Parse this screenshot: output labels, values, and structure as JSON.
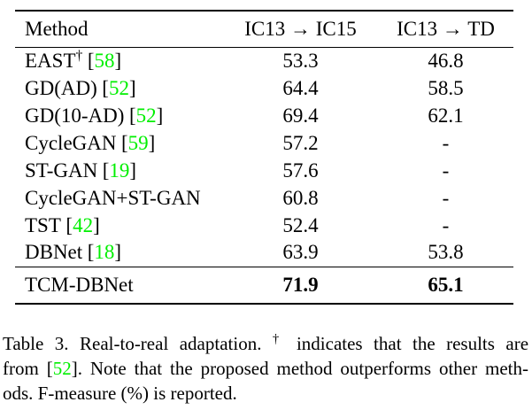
{
  "colors": {
    "citation": "#00ef00",
    "text": "#000000"
  },
  "table": {
    "columns": [
      {
        "label": "Method"
      },
      {
        "label": "IC13 → IC15"
      },
      {
        "label": "IC13 → TD"
      }
    ],
    "rows": [
      {
        "method": "EAST",
        "dagger": "†",
        "cite_l": "[",
        "cite": "58",
        "cite_r": "]",
        "ic15": "53.3",
        "td": "46.8"
      },
      {
        "method": "GD(AD)",
        "cite_l": "[",
        "cite": "52",
        "cite_r": "]",
        "ic15": "64.4",
        "td": "58.5"
      },
      {
        "method": "GD(10-AD)",
        "cite_l": "[",
        "cite": "52",
        "cite_r": "]",
        "ic15": "69.4",
        "td": "62.1"
      },
      {
        "method": "CycleGAN",
        "cite_l": "[",
        "cite": "59",
        "cite_r": "]",
        "ic15": "57.2",
        "td": "-"
      },
      {
        "method": "ST-GAN",
        "cite_l": "[",
        "cite": "19",
        "cite_r": "]",
        "ic15": "57.6",
        "td": "-"
      },
      {
        "method": "CycleGAN+ST-GAN",
        "ic15": "60.8",
        "td": "-"
      },
      {
        "method": "TST",
        "cite_l": "[",
        "cite": "42",
        "cite_r": "]",
        "ic15": "52.4",
        "td": "-"
      },
      {
        "method": "DBNet",
        "cite_l": "[",
        "cite": "18",
        "cite_r": "]",
        "ic15": "63.9",
        "td": "53.8"
      }
    ],
    "highlight_row": {
      "method": "TCM-DBNet",
      "ic15": "71.9",
      "td": "65.1"
    }
  },
  "caption": {
    "line1_pre": "Table 3.  Real-to-real adaptation.",
    "dagger": "†",
    "line1_post": "indicates that the results are",
    "line2_pre": "from [",
    "cite": "52",
    "line2_post": "]. Note that the proposed method outperforms other meth-",
    "line3": "ods. F-measure (%) is reported."
  }
}
